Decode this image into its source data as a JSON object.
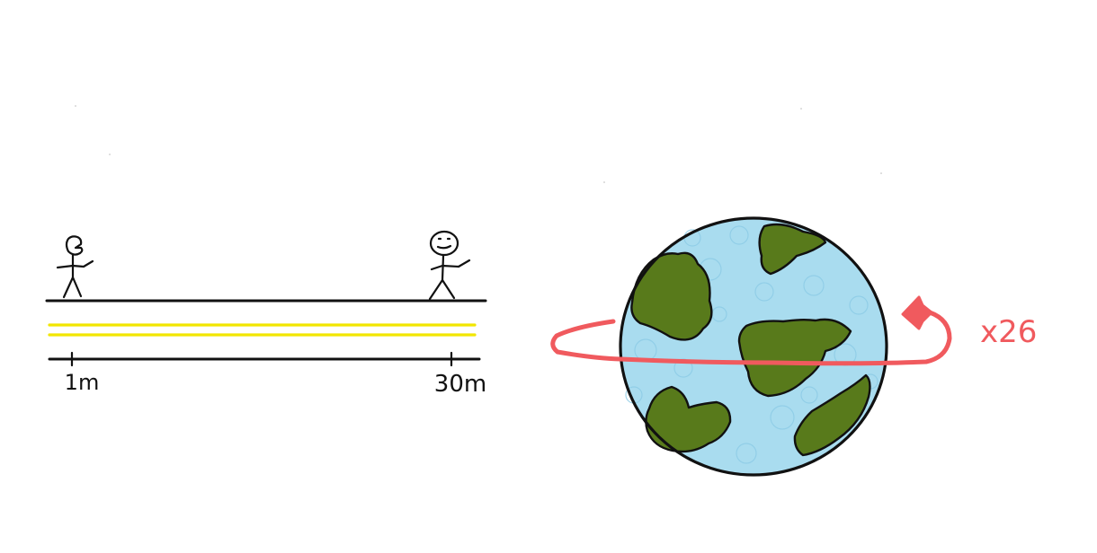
{
  "labels": {
    "left_mark": "1m",
    "right_mark": "30m",
    "multiplier": "x26"
  },
  "colors": {
    "ink": "#111111",
    "signal": "#f2e600",
    "loop": "#f05a5e",
    "ocean": "#a9dcef",
    "land": "#587a1b",
    "land_dark": "#486612"
  }
}
